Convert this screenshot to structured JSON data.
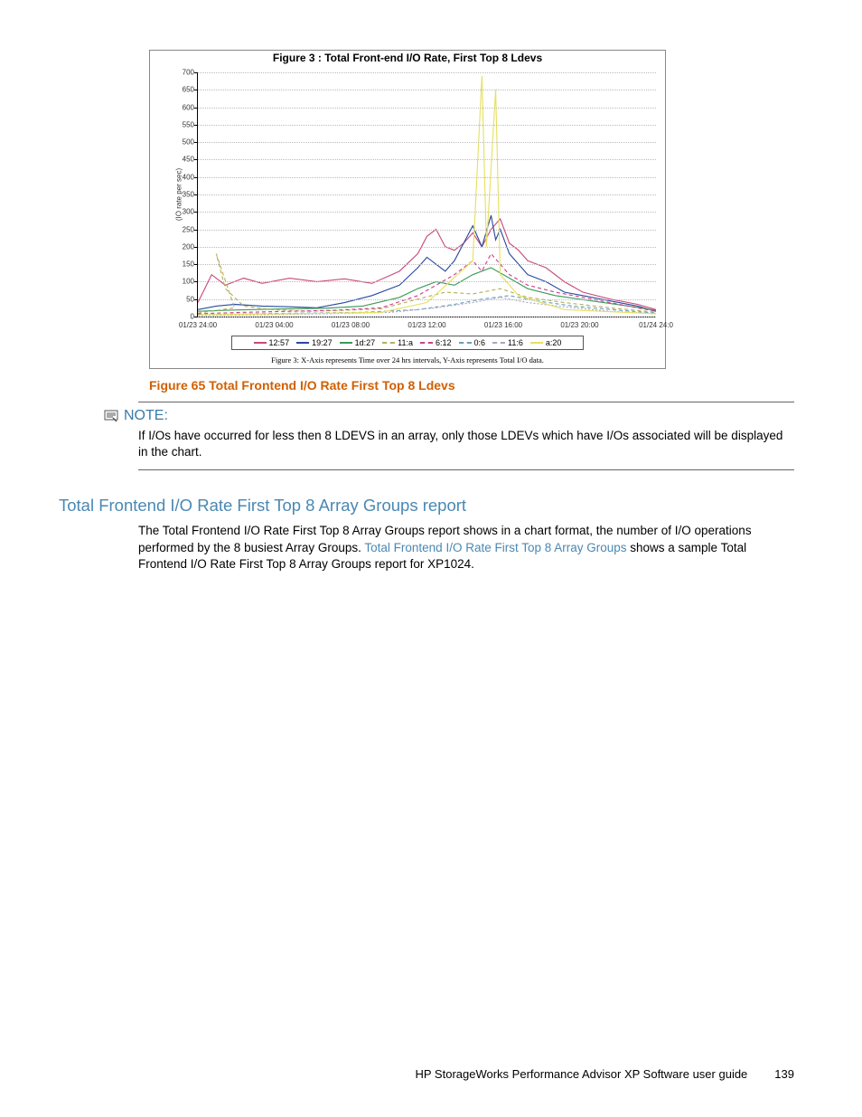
{
  "chart": {
    "type": "line",
    "title": "Figure 3 : Total Front-end I/O Rate, First Top 8 Ldevs",
    "ylabel": "(IO rate per sec)",
    "ylim": [
      0,
      700
    ],
    "ytick_step": 50,
    "yticks": [
      0,
      50,
      100,
      150,
      200,
      250,
      300,
      350,
      400,
      450,
      500,
      550,
      600,
      650,
      700
    ],
    "xticks": [
      "01/23 24:00",
      "01/23 04:00",
      "01/23 08:00",
      "01/23 12:00",
      "01/23 16:00",
      "01/23 20:00",
      "01/24 24:0"
    ],
    "background_color": "#ffffff",
    "grid_color": "#cfcfcf",
    "axis_color": "#000000",
    "title_fontsize": 12,
    "label_fontsize": 8,
    "subcaption": "Figure 3: X-Axis represents Time over 24 hrs intervals, Y-Axis represents Total I/O data.",
    "legend": [
      {
        "label": "12:57",
        "color": "#c94a7a",
        "dash": "0"
      },
      {
        "label": "19:27",
        "color": "#2a4aa0",
        "dash": "0"
      },
      {
        "label": "1d:27",
        "color": "#3a9c59",
        "dash": "0"
      },
      {
        "label": "11:a",
        "color": "#b8b05a",
        "dash": "4 3"
      },
      {
        "label": "6:12",
        "color": "#d03f8a",
        "dash": "4 3"
      },
      {
        "label": "0:6",
        "color": "#6aa0bf",
        "dash": "4 3"
      },
      {
        "label": "11:6",
        "color": "#a8a8c0",
        "dash": "2 2"
      },
      {
        "label": "a:20",
        "color": "#e6e060",
        "dash": "0"
      }
    ],
    "series": [
      {
        "name": "12:57",
        "color": "#c94a7a",
        "dash": "0",
        "points": [
          [
            0,
            40
          ],
          [
            3,
            120
          ],
          [
            6,
            90
          ],
          [
            10,
            110
          ],
          [
            14,
            95
          ],
          [
            20,
            110
          ],
          [
            26,
            100
          ],
          [
            32,
            108
          ],
          [
            38,
            95
          ],
          [
            44,
            130
          ],
          [
            48,
            180
          ],
          [
            50,
            230
          ],
          [
            52,
            250
          ],
          [
            54,
            200
          ],
          [
            56,
            190
          ],
          [
            58,
            210
          ],
          [
            60,
            240
          ],
          [
            62,
            200
          ],
          [
            64,
            250
          ],
          [
            66,
            280
          ],
          [
            68,
            210
          ],
          [
            70,
            190
          ],
          [
            72,
            160
          ],
          [
            76,
            140
          ],
          [
            80,
            100
          ],
          [
            84,
            70
          ],
          [
            90,
            50
          ],
          [
            96,
            35
          ],
          [
            100,
            20
          ]
        ]
      },
      {
        "name": "19:27",
        "color": "#2a4aa0",
        "dash": "0",
        "points": [
          [
            0,
            20
          ],
          [
            4,
            30
          ],
          [
            8,
            35
          ],
          [
            14,
            30
          ],
          [
            20,
            28
          ],
          [
            26,
            25
          ],
          [
            32,
            40
          ],
          [
            38,
            60
          ],
          [
            44,
            90
          ],
          [
            48,
            140
          ],
          [
            50,
            170
          ],
          [
            52,
            150
          ],
          [
            54,
            130
          ],
          [
            56,
            160
          ],
          [
            58,
            210
          ],
          [
            60,
            260
          ],
          [
            62,
            200
          ],
          [
            64,
            290
          ],
          [
            65,
            220
          ],
          [
            66,
            250
          ],
          [
            68,
            180
          ],
          [
            70,
            150
          ],
          [
            72,
            120
          ],
          [
            76,
            100
          ],
          [
            80,
            70
          ],
          [
            84,
            60
          ],
          [
            90,
            45
          ],
          [
            96,
            30
          ],
          [
            100,
            15
          ]
        ]
      },
      {
        "name": "1d:27",
        "color": "#3a9c59",
        "dash": "0",
        "points": [
          [
            0,
            15
          ],
          [
            6,
            18
          ],
          [
            12,
            20
          ],
          [
            20,
            22
          ],
          [
            28,
            24
          ],
          [
            36,
            30
          ],
          [
            44,
            55
          ],
          [
            48,
            80
          ],
          [
            52,
            100
          ],
          [
            56,
            90
          ],
          [
            60,
            120
          ],
          [
            64,
            140
          ],
          [
            68,
            110
          ],
          [
            72,
            80
          ],
          [
            78,
            60
          ],
          [
            86,
            45
          ],
          [
            94,
            30
          ],
          [
            100,
            18
          ]
        ]
      },
      {
        "name": "11:a",
        "color": "#b8b05a",
        "dash": "4 3",
        "points": [
          [
            0,
            10
          ],
          [
            8,
            25
          ],
          [
            4,
            180
          ],
          [
            6,
            80
          ],
          [
            10,
            30
          ],
          [
            16,
            20
          ],
          [
            24,
            15
          ],
          [
            32,
            18
          ],
          [
            40,
            22
          ],
          [
            48,
            50
          ],
          [
            54,
            70
          ],
          [
            60,
            65
          ],
          [
            66,
            80
          ],
          [
            72,
            55
          ],
          [
            80,
            40
          ],
          [
            90,
            25
          ],
          [
            100,
            12
          ]
        ]
      },
      {
        "name": "6:12",
        "color": "#d03f8a",
        "dash": "4 3",
        "points": [
          [
            0,
            8
          ],
          [
            10,
            12
          ],
          [
            20,
            15
          ],
          [
            30,
            18
          ],
          [
            40,
            25
          ],
          [
            48,
            60
          ],
          [
            52,
            90
          ],
          [
            56,
            120
          ],
          [
            60,
            160
          ],
          [
            62,
            130
          ],
          [
            64,
            180
          ],
          [
            66,
            150
          ],
          [
            68,
            120
          ],
          [
            72,
            90
          ],
          [
            78,
            70
          ],
          [
            86,
            50
          ],
          [
            94,
            30
          ],
          [
            100,
            15
          ]
        ]
      },
      {
        "name": "0:6",
        "color": "#6aa0bf",
        "dash": "4 3",
        "points": [
          [
            0,
            5
          ],
          [
            12,
            8
          ],
          [
            24,
            10
          ],
          [
            36,
            12
          ],
          [
            48,
            20
          ],
          [
            56,
            35
          ],
          [
            62,
            50
          ],
          [
            68,
            60
          ],
          [
            74,
            45
          ],
          [
            82,
            30
          ],
          [
            92,
            18
          ],
          [
            100,
            10
          ]
        ]
      },
      {
        "name": "11:6",
        "color": "#a8a8c0",
        "dash": "2 2",
        "points": [
          [
            0,
            3
          ],
          [
            14,
            5
          ],
          [
            28,
            8
          ],
          [
            42,
            12
          ],
          [
            52,
            25
          ],
          [
            60,
            40
          ],
          [
            66,
            55
          ],
          [
            72,
            40
          ],
          [
            80,
            28
          ],
          [
            90,
            15
          ],
          [
            100,
            8
          ]
        ]
      },
      {
        "name": "a:20",
        "color": "#e6e060",
        "dash": "0",
        "points": [
          [
            0,
            5
          ],
          [
            20,
            8
          ],
          [
            40,
            12
          ],
          [
            50,
            40
          ],
          [
            60,
            160
          ],
          [
            62,
            690
          ],
          [
            63,
            200
          ],
          [
            65,
            650
          ],
          [
            66,
            120
          ],
          [
            70,
            60
          ],
          [
            80,
            20
          ],
          [
            100,
            8
          ]
        ]
      }
    ]
  },
  "figure_caption": "Figure 65 Total Frontend I/O Rate First Top 8 Ldevs",
  "note": {
    "label": "NOTE:",
    "body": "If I/Os have occurred for less then 8 LDEVS in an array, only those LDEVs which have I/Os associated will be displayed in the chart."
  },
  "section": {
    "heading": "Total Frontend I/O Rate First Top 8 Array Groups report",
    "body_pre": "The Total Frontend I/O Rate First Top 8 Array Groups report shows in a chart format, the number of I/O operations performed by the 8 busiest Array Groups. ",
    "link_text": "Total Frontend I/O Rate First Top 8 Array Groups",
    "body_post": " shows a sample Total Frontend I/O Rate First Top 8 Array Groups report for XP1024."
  },
  "footer": {
    "doc": "HP StorageWorks Performance Advisor XP Software user guide",
    "page": "139"
  }
}
